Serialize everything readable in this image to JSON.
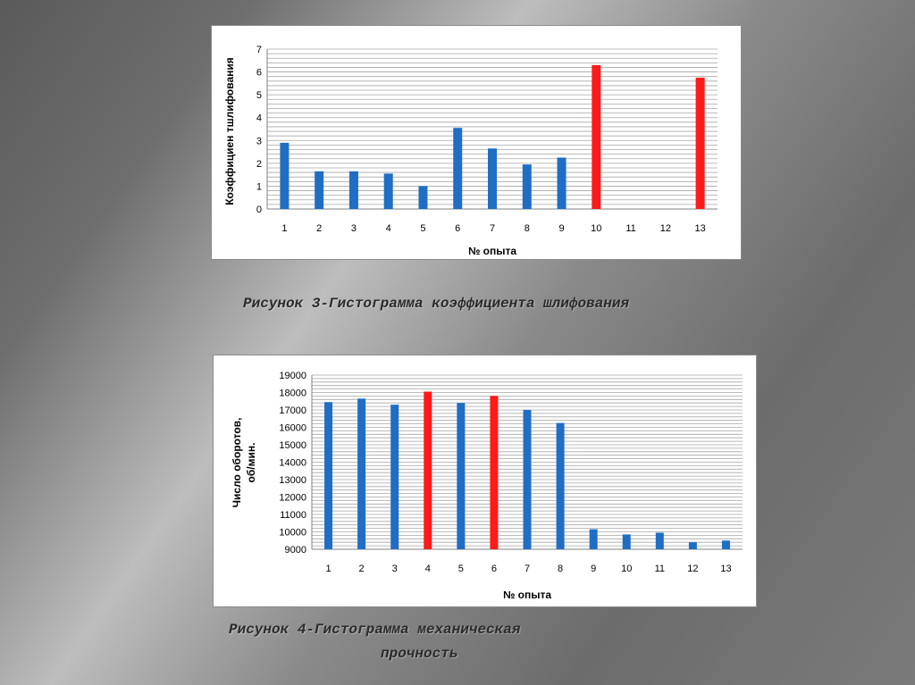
{
  "colors": {
    "blue": "#1f6ec4",
    "red": "#ff1a1a",
    "grid": "#a6a6a6",
    "text": "#000000"
  },
  "chart_data": [
    {
      "type": "bar",
      "ylabel": "Коэффициен тшлифования",
      "xlabel": "№ опыта",
      "categories": [
        "1",
        "2",
        "3",
        "4",
        "5",
        "6",
        "7",
        "8",
        "9",
        "10",
        "11",
        "12",
        "13"
      ],
      "values": [
        2.9,
        1.65,
        1.65,
        1.55,
        1.0,
        3.55,
        2.65,
        1.95,
        2.25,
        6.3,
        0,
        0,
        5.75
      ],
      "highlight": [
        false,
        false,
        false,
        false,
        false,
        false,
        false,
        false,
        false,
        true,
        false,
        false,
        true
      ],
      "ylim": [
        0,
        7
      ],
      "yticks": [
        "0",
        "1",
        "2",
        "3",
        "4",
        "5",
        "6",
        "7"
      ],
      "grid": true
    },
    {
      "type": "bar",
      "ylabel_line1": "Число оборотов,",
      "ylabel_line2": "об/мин.",
      "xlabel": "№ опыта",
      "categories": [
        "1",
        "2",
        "3",
        "4",
        "5",
        "6",
        "7",
        "8",
        "9",
        "10",
        "11",
        "12",
        "13"
      ],
      "values": [
        17450,
        17650,
        17300,
        18050,
        17400,
        17800,
        17000,
        16250,
        10150,
        9850,
        9950,
        9400,
        9500
      ],
      "highlight": [
        false,
        false,
        false,
        true,
        false,
        true,
        false,
        false,
        false,
        false,
        false,
        false,
        false
      ],
      "ylim": [
        9000,
        19000
      ],
      "yticks": [
        "9000",
        "10000",
        "11000",
        "12000",
        "13000",
        "14000",
        "15000",
        "16000",
        "17000",
        "18000",
        "19000"
      ],
      "grid": true
    }
  ],
  "captions": {
    "figure3": "Рисунок 3-Гистограмма коэффициента шлифования",
    "figure4_line1": "Рисунок 4-Гистограмма механическая",
    "figure4_line2": "прочность"
  }
}
